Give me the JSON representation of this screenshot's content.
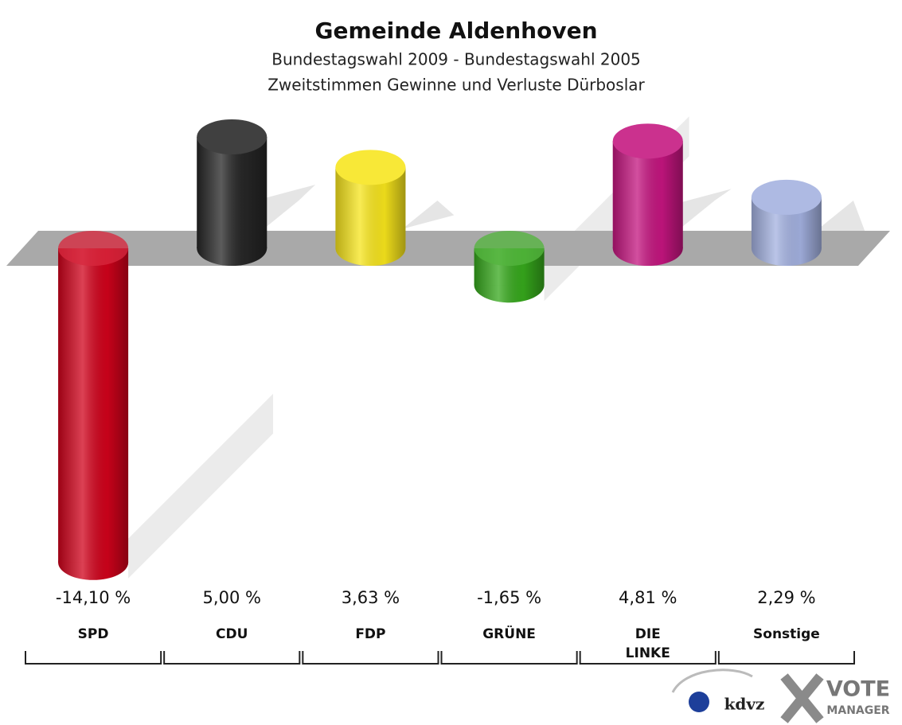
{
  "chart_data": {
    "type": "bar3d",
    "title": "Gemeinde Aldenhoven",
    "subtitle": [
      "Bundestagswahl 2009 - Bundestagswahl 2005",
      "Zweitstimmen Gewinne und Verluste Dürboslar"
    ],
    "categories": [
      "SPD",
      "CDU",
      "FDP",
      "GRÜNE",
      "DIE LINKE",
      "Sonstige"
    ],
    "values": [
      -14.1,
      5.0,
      3.63,
      -1.65,
      4.81,
      2.29
    ],
    "value_labels": [
      "-14,10 %",
      "5,00 %",
      "3,63 %",
      "-1,65 %",
      "4,81 %",
      "2,29 %"
    ],
    "colors": [
      "#d0021b",
      "#262626",
      "#f7e51c",
      "#36a81c",
      "#c4157f",
      "#a3b1e0"
    ],
    "logo": [
      "kdvz",
      "VOTE",
      "MANAGER"
    ]
  }
}
